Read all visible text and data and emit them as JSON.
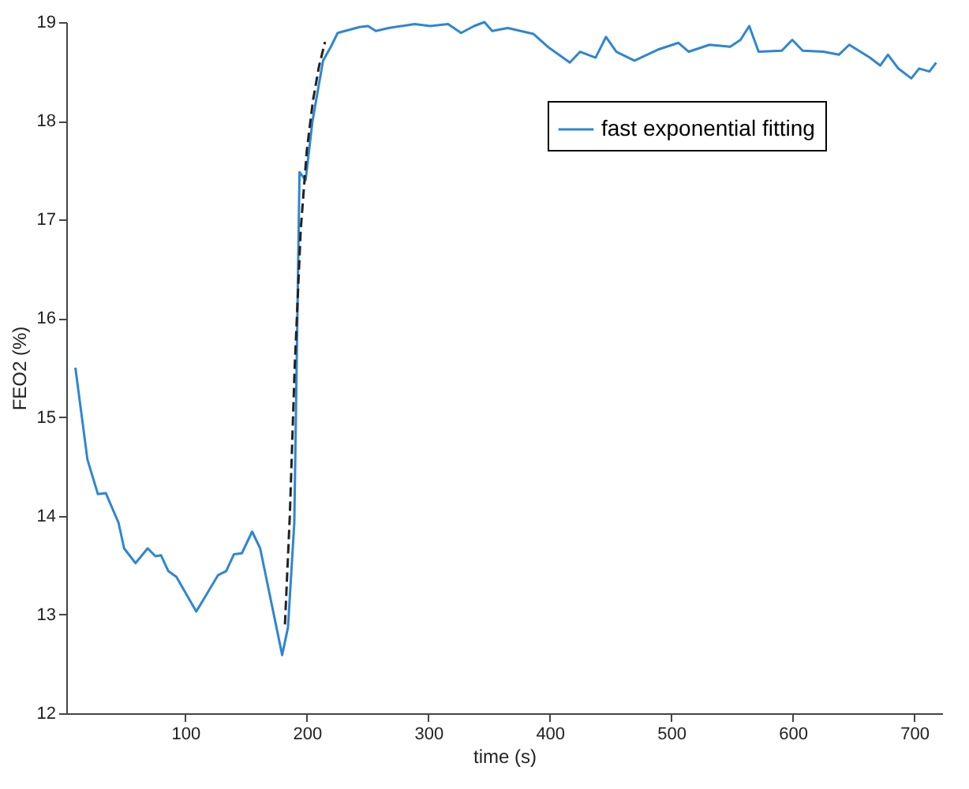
{
  "chart_data": {
    "type": "line",
    "xlabel": "time (s)",
    "ylabel": "FEO2 (%)",
    "xlim": [
      2,
      723
    ],
    "ylim": [
      12,
      19
    ],
    "xticks": [
      100,
      200,
      300,
      400,
      500,
      600,
      700
    ],
    "yticks": [
      12,
      13,
      14,
      15,
      16,
      17,
      18,
      19
    ],
    "grid": false,
    "legend": "top right",
    "marker": "none",
    "series": [
      {
        "name": "fast exponential fitting",
        "color": "#2e86d1",
        "line_style": "solid",
        "x": [
          9.5,
          19.4,
          28,
          34.5,
          45,
          49.6,
          59,
          69,
          75.4,
          80,
          86,
          92.7,
          109,
          127,
          133.6,
          140,
          146.5,
          155,
          161.6,
          179.7,
          184.5,
          189.7,
          194,
          199,
          204.7,
          213.4,
          219.8,
          225.4,
          243.5,
          250.4,
          256.8,
          267.4,
          288.7,
          301.5,
          316.3,
          327,
          337.7,
          346.2,
          352.6,
          365.4,
          386.6,
          399.4,
          416.5,
          425,
          437.7,
          446.3,
          454.8,
          469.7,
          488.8,
          505.9,
          514.4,
          531.5,
          548.5,
          557,
          564.2,
          571.9,
          591,
          599.6,
          608.2,
          625.2,
          638,
          646.5,
          663.5,
          672,
          678.4,
          686.9,
          697.6,
          704,
          712.5,
          718.1
        ],
        "values": [
          15.5,
          14.57,
          14.22,
          14.23,
          13.93,
          13.67,
          13.52,
          13.67,
          13.59,
          13.6,
          13.44,
          13.38,
          13.03,
          13.4,
          13.44,
          13.61,
          13.62,
          13.84,
          13.67,
          12.59,
          12.87,
          13.93,
          17.48,
          17.4,
          18.0,
          18.61,
          18.75,
          18.89,
          18.95,
          18.96,
          18.91,
          18.94,
          18.98,
          18.96,
          18.98,
          18.89,
          18.96,
          19.0,
          18.91,
          18.94,
          18.88,
          18.74,
          18.59,
          18.7,
          18.64,
          18.85,
          18.7,
          18.61,
          18.72,
          18.79,
          18.7,
          18.77,
          18.75,
          18.82,
          18.96,
          18.7,
          18.71,
          18.82,
          18.71,
          18.7,
          18.67,
          18.77,
          18.64,
          18.56,
          18.67,
          18.53,
          18.43,
          18.53,
          18.5,
          18.59
        ]
      },
      {
        "color": "#222222",
        "line_style": "dashed",
        "x": [
          182,
          186,
          190,
          195,
          200,
          205,
          210,
          215
        ],
        "values": [
          12.9,
          14.0,
          15.5,
          16.9,
          17.7,
          18.2,
          18.55,
          18.8
        ]
      }
    ]
  }
}
